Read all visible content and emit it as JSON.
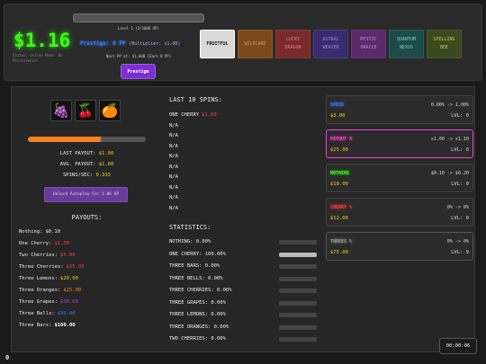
{
  "header": {
    "money": "$1.16",
    "status_text": "Status: Online Mode: No Persistence!",
    "level_text": "Level 1 (2/1000 XP)",
    "prestige_label": "Prestige: 0 PP",
    "multiplier_text": "(Multiplier: x1.00)",
    "next_pp_text": "Next PP at: $1,000 (Earn 0 PP)",
    "prestige_button": "Prestige"
  },
  "themes": [
    {
      "label": "FRUITFUL",
      "bg": "#d9d9d9",
      "color": "#111",
      "border": "#fff"
    },
    {
      "label": "WILDCARD",
      "bg": "#7a4a1e",
      "color": "#c79a5a",
      "border": "#8a5a2a"
    },
    {
      "label": "LUCKY DRAGON",
      "bg": "#7a2a2a",
      "color": "#e08080",
      "border": "#8a3a3a"
    },
    {
      "label": "ASTRAL WEAVER",
      "bg": "#3a2a6e",
      "color": "#9a8ae0",
      "border": "#4a3a8e"
    },
    {
      "label": "MYSTIC ORACLE",
      "bg": "#5a2a6a",
      "color": "#c08ae0",
      "border": "#6a3a7a"
    },
    {
      "label": "QUANTUM NEXUS",
      "bg": "#1e4a4a",
      "color": "#7ad0d0",
      "border": "#2a5a5a"
    },
    {
      "label": "SPELLING BEE",
      "bg": "#3a4a1e",
      "color": "#b0d060",
      "border": "#4a5a2a"
    }
  ],
  "reels": [
    "🍇",
    "🍒",
    "🍊"
  ],
  "progress_fraction": 0.62,
  "stats": {
    "last_payout_label": "LAST PAYOUT:",
    "last_payout": "$1.00",
    "avg_payout_label": "AVG. PAYOUT:",
    "avg_payout": "$1.00",
    "spins_label": "SPINS/SEC:",
    "spins": "0.333"
  },
  "autospin_label": "Unlock Autoplay For 1.0K XP",
  "payouts_title": "PAYOUTS:",
  "payouts": [
    {
      "label": "Nothing:",
      "value": "$0.10",
      "color": "#eee"
    },
    {
      "label": "One Cherry:",
      "value": "$1.00",
      "color": "#ff3b3b"
    },
    {
      "label": "Two Cherries:",
      "value": "$5.00",
      "color": "#ff3b3b"
    },
    {
      "label": "Three Cherries:",
      "value": "$15.00",
      "color": "#ff3b3b"
    },
    {
      "label": "Three Lemons:",
      "value": "$20.00",
      "color": "#f5d311"
    },
    {
      "label": "Three Oranges:",
      "value": "$25.00",
      "color": "#f5821f"
    },
    {
      "label": "Three Grapes:",
      "value": "$30.00",
      "color": "#a040d0"
    },
    {
      "label": "Three Bells:",
      "value": "$50.00",
      "color": "#3a7bff"
    },
    {
      "label": "Three Bars:",
      "value": "$100.00",
      "color": "#ffffff"
    }
  ],
  "last_spins_title": "LAST 10 SPINS:",
  "last_spins": [
    {
      "label": "ONE CHERRY",
      "value": "$1.00"
    },
    {
      "label": "N/A",
      "value": ""
    },
    {
      "label": "N/A",
      "value": ""
    },
    {
      "label": "N/A",
      "value": ""
    },
    {
      "label": "N/A",
      "value": ""
    },
    {
      "label": "N/A",
      "value": ""
    },
    {
      "label": "N/A",
      "value": ""
    },
    {
      "label": "N/A",
      "value": ""
    },
    {
      "label": "N/A",
      "value": ""
    },
    {
      "label": "N/A",
      "value": ""
    }
  ],
  "statistics_title": "STATISTICS:",
  "statistics": [
    {
      "label": "NOTHING: 0.00%",
      "fraction": 0
    },
    {
      "label": "ONE CHERRY: 100.00%",
      "fraction": 1
    },
    {
      "label": "THREE BARS: 0.00%",
      "fraction": 0
    },
    {
      "label": "THREE BELLS: 0.00%",
      "fraction": 0
    },
    {
      "label": "THREE CHERRIES: 0.00%",
      "fraction": 0
    },
    {
      "label": "THREE GRAPES: 0.00%",
      "fraction": 0
    },
    {
      "label": "THREE LEMONS: 0.00%",
      "fraction": 0
    },
    {
      "label": "THREE ORANGES: 0.00%",
      "fraction": 0
    },
    {
      "label": "TWO CHERRIES: 0.00%",
      "fraction": 0
    }
  ],
  "upgrades": [
    {
      "name": "SPEED",
      "mult": "0.00% -> 1.00%",
      "cost": "$3.00",
      "level": "LVL: 0",
      "color": "#3a7bff",
      "border": "#444"
    },
    {
      "name": "PAYOUT X",
      "mult": "x1.00 -> x1.10",
      "cost": "$25.00",
      "level": "LVL: 0",
      "color": "#ff3bd1",
      "border": "#ff3bd1"
    },
    {
      "name": "NOTHING",
      "mult": "$0.10 -> $0.20",
      "cost": "$10.00",
      "level": "LVL: 0",
      "color": "#39ff14",
      "border": "#444"
    },
    {
      "name": "CHERRY %",
      "mult": "0% -> 0%",
      "cost": "$12.00",
      "level": "LVL: 0",
      "color": "#ff3b3b",
      "border": "#444"
    },
    {
      "name": "THREES %",
      "mult": "0% -> 0%",
      "cost": "$75.00",
      "level": "LVL: 9",
      "color": "#999",
      "border": "#555"
    }
  ],
  "timer": "00:00:06",
  "corner_value": "0"
}
